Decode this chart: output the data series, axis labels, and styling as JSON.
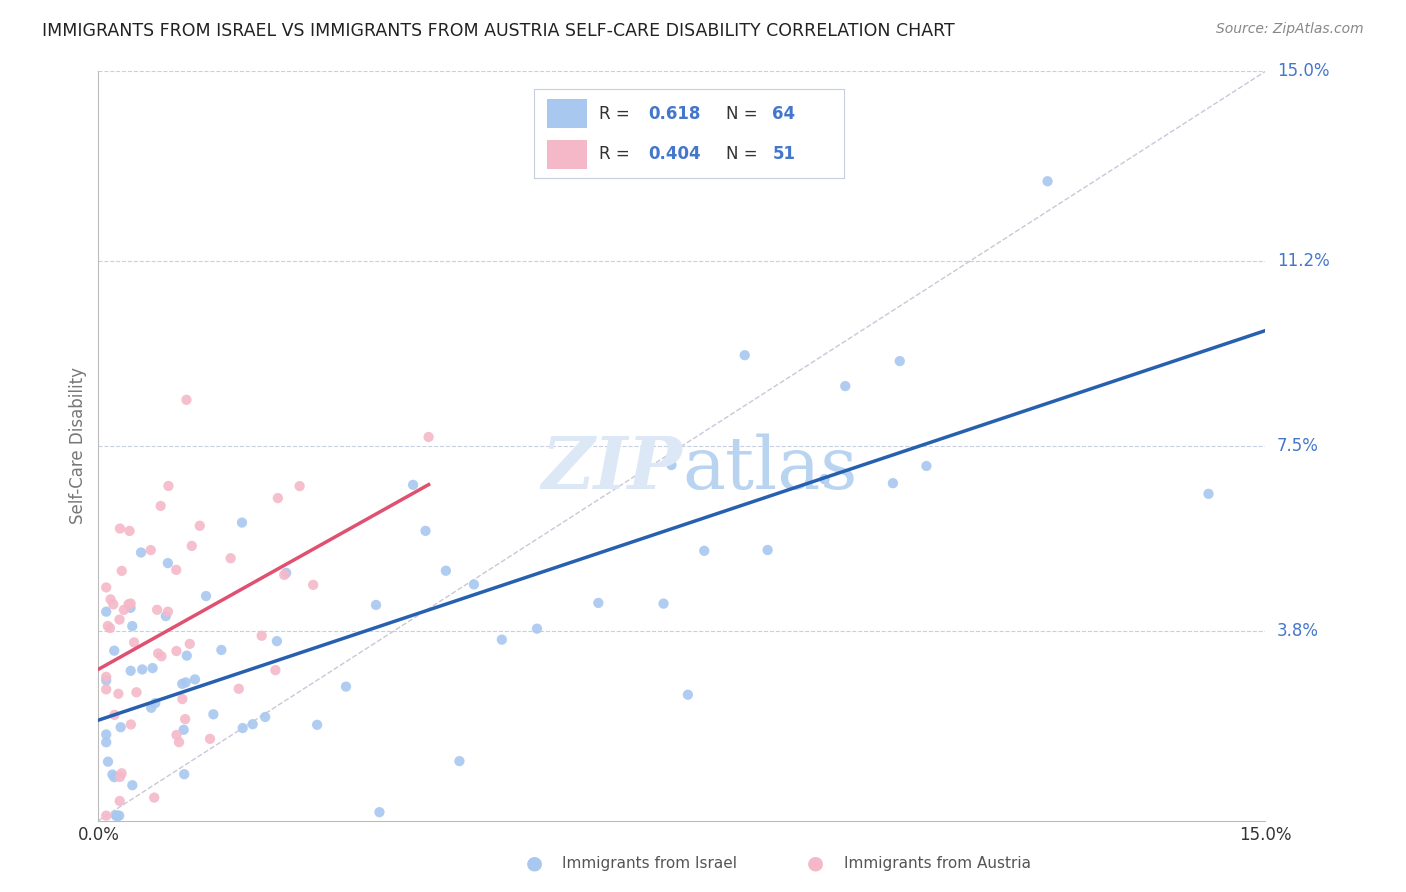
{
  "title": "IMMIGRANTS FROM ISRAEL VS IMMIGRANTS FROM AUSTRIA SELF-CARE DISABILITY CORRELATION CHART",
  "source": "Source: ZipAtlas.com",
  "xmin": 0.0,
  "xmax": 0.15,
  "ymin": 0.0,
  "ymax": 0.15,
  "israel_R": 0.618,
  "israel_N": 64,
  "austria_R": 0.404,
  "austria_N": 51,
  "israel_color": "#a8c8f0",
  "austria_color": "#f5b8c8",
  "israel_line_color": "#2860b0",
  "austria_line_color": "#e05070",
  "diag_line_color": "#c8c8d8",
  "grid_color": "#c8d0e0",
  "background_color": "#ffffff",
  "label_color": "#4477cc",
  "text_color": "#333333",
  "ylabel": "Self-Care Disability",
  "ytick_vals": [
    0.038,
    0.075,
    0.112,
    0.15
  ],
  "ytick_labels": [
    "3.8%",
    "7.5%",
    "11.2%",
    "15.0%"
  ],
  "watermark_color": "#dce8f5",
  "legend_face": "#ffffff",
  "legend_edge": "#c8d0e0"
}
